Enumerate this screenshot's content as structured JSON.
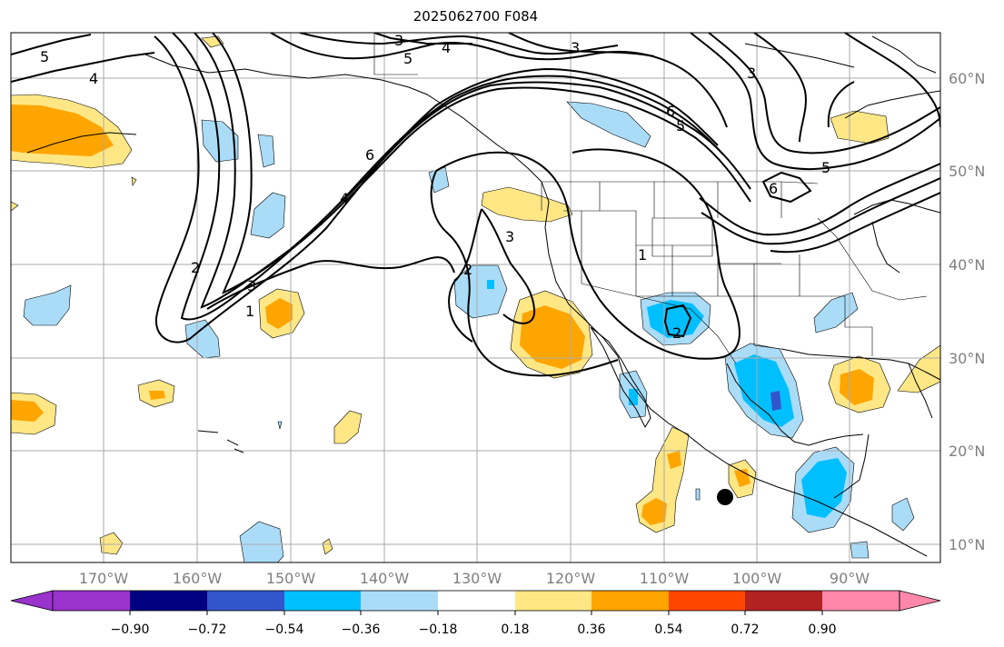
{
  "title": "2025062700 F084",
  "map": {
    "lat_labels": [
      "60°N",
      "50°N",
      "40°N",
      "30°N",
      "20°N",
      "10°N"
    ],
    "lon_labels": [
      "170°W",
      "160°W",
      "150°W",
      "140°W",
      "130°W",
      "120°W",
      "110°W",
      "100°W",
      "90°W"
    ],
    "grid": true,
    "contour_color": "#000000",
    "contour_labels": [
      "5",
      "4",
      "3",
      "4",
      "3",
      "5",
      "6",
      "5",
      "3",
      "6",
      "5",
      "6",
      "4",
      "2",
      "3",
      "1",
      "2",
      "3",
      "1",
      "2"
    ],
    "marker": "storm-center-dot"
  },
  "colorbar": {
    "ticks": [
      "−0.90",
      "−0.72",
      "−0.54",
      "−0.36",
      "−0.18",
      "0.18",
      "0.36",
      "0.54",
      "0.72",
      "0.90"
    ],
    "colors": [
      "#9933cc",
      "#000080",
      "#3355cc",
      "#00bfff",
      "#aadcf8",
      "#ffffff",
      "#ffe785",
      "#ffa500",
      "#ff4500",
      "#b22222",
      "#ff88aa"
    ]
  },
  "colors": {
    "ocean": "#ffffff",
    "positive_light": "#ffe785",
    "positive_mid": "#ffa500",
    "negative_light": "#aadcf8",
    "negative_mid": "#00bfff",
    "negative_dark": "#3355cc",
    "grid": "#aaaaaa",
    "tick_label": "#7f7f7f"
  }
}
